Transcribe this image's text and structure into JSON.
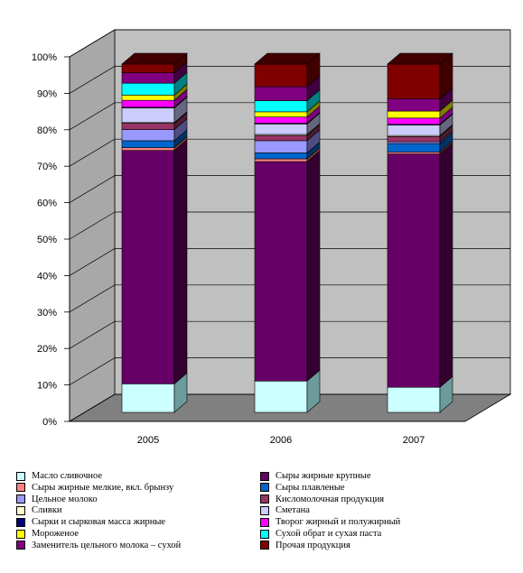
{
  "chart_data": {
    "type": "bar",
    "stacked": "percent",
    "three_d": true,
    "categories": [
      "2005",
      "2006",
      "2007"
    ],
    "ylim": [
      0,
      100
    ],
    "yticks": [
      "0%",
      "10%",
      "20%",
      "30%",
      "40%",
      "50%",
      "60%",
      "70%",
      "80%",
      "90%",
      "100%"
    ],
    "grid": true,
    "legend_position": "bottom",
    "series": [
      {
        "name": "Масло сливочное",
        "color": "#ccffff",
        "side": "#6b9b9b",
        "values": [
          8.2,
          9.0,
          7.2
        ]
      },
      {
        "name": "Сыры жирные крупные",
        "color": "#660066",
        "side": "#33002f",
        "values": [
          67.0,
          63.0,
          67.0
        ]
      },
      {
        "name": "Сыры жирные мелкие, вкл. брынзу",
        "color": "#ff8080",
        "side": "#8a3f3f",
        "values": [
          0.8,
          0.8,
          0.5
        ]
      },
      {
        "name": "Сыры плавленые",
        "color": "#0066cc",
        "side": "#003366",
        "values": [
          2.0,
          1.7,
          2.5
        ]
      },
      {
        "name": "Цельное молоко",
        "color": "#9999ff",
        "side": "#4d4d80",
        "values": [
          3.2,
          3.5,
          0.5
        ]
      },
      {
        "name": "Кисломолочная продукция",
        "color": "#993366",
        "side": "#4d1a33",
        "values": [
          1.8,
          1.5,
          1.5
        ]
      },
      {
        "name": "Сливки",
        "color": "#ffffcc",
        "side": "#8a8a66",
        "values": [
          0.2,
          0.3,
          0.3
        ]
      },
      {
        "name": "Сметана",
        "color": "#ccccff",
        "side": "#666680",
        "values": [
          4.2,
          3.0,
          3.0
        ]
      },
      {
        "name": "Сырки и сырковая масса жирные",
        "color": "#000080",
        "side": "#000040",
        "values": [
          0.2,
          0.2,
          0.2
        ]
      },
      {
        "name": "Творог жирный и полужирный",
        "color": "#ff00ff",
        "side": "#800080",
        "values": [
          2.0,
          1.8,
          1.8
        ]
      },
      {
        "name": "Мороженое",
        "color": "#ffff00",
        "side": "#808000",
        "values": [
          1.5,
          1.5,
          2.0
        ]
      },
      {
        "name": "Сухой обрат и сухая паста",
        "color": "#00ffff",
        "side": "#008080",
        "values": [
          3.4,
          3.2,
          0.0
        ]
      },
      {
        "name": "Заменитель цельного молока – сухой",
        "color": "#800080",
        "side": "#400040",
        "values": [
          3.0,
          4.0,
          3.5
        ]
      },
      {
        "name": "Прочая продукция",
        "color": "#800000",
        "side": "#400000",
        "values": [
          2.5,
          6.5,
          10.0
        ]
      }
    ]
  },
  "legend": {
    "left": [
      "Масло сливочное",
      "Сыры жирные мелкие, вкл. брынзу",
      "Цельное молоко",
      "Сливки",
      "Сырки и сырковая масса жирные",
      "Мороженое",
      "Заменитель цельного молока – сухой"
    ],
    "right": [
      "Сыры жирные крупные",
      "Сыры плавленые",
      "Кисломолочная продукция",
      "Сметана",
      "Творог жирный и полужирный",
      "Сухой обрат и сухая паста",
      "Прочая продукция"
    ]
  }
}
